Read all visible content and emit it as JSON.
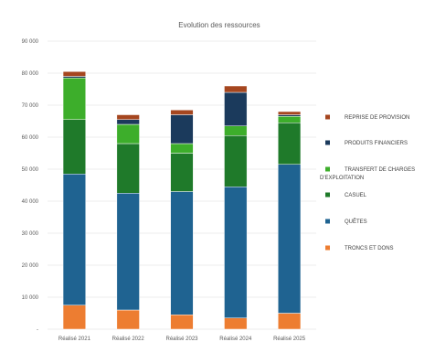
{
  "chart_data": {
    "type": "bar",
    "stacked": true,
    "title": "Evolution des ressources",
    "xlabel": "",
    "ylabel": "",
    "ylim": [
      0,
      90000
    ],
    "yticks": [
      0,
      10000,
      20000,
      30000,
      40000,
      50000,
      60000,
      70000,
      80000,
      90000
    ],
    "ytick_labels": [
      "-",
      "10 000",
      "20 000",
      "30 000",
      "40 000",
      "50 000",
      "60 000",
      "70 000",
      "80 000",
      "90 000"
    ],
    "grid": true,
    "legend_position": "right",
    "categories": [
      "Réalisé 2021",
      "Réalisé 2022",
      "Réalisé 2023",
      "Réalisé 2024",
      "Réalisé 2025"
    ],
    "series": [
      {
        "name": "TRONCS ET DONS",
        "color": "#ED7D31",
        "values": [
          7500,
          6000,
          4500,
          3500,
          5000
        ]
      },
      {
        "name": "QUÊTES",
        "color": "#1F6391",
        "values": [
          41000,
          36500,
          38500,
          41000,
          46500
        ]
      },
      {
        "name": "CASUEL",
        "color": "#1F7A2A",
        "values": [
          17000,
          15500,
          12000,
          16000,
          13000
        ]
      },
      {
        "name": "TRANSFERT DE CHARGES D'EXPLOITATION",
        "color": "#3DAE2B",
        "values": [
          13000,
          6000,
          3000,
          3000,
          2000
        ]
      },
      {
        "name": "PRODUITS FINANCIERS",
        "color": "#1B3A5C",
        "values": [
          500,
          1500,
          9000,
          10500,
          500
        ]
      },
      {
        "name": "REPRISE DE PROVISION",
        "color": "#A5461F",
        "values": [
          1500,
          1500,
          1500,
          2000,
          1000
        ]
      }
    ]
  }
}
